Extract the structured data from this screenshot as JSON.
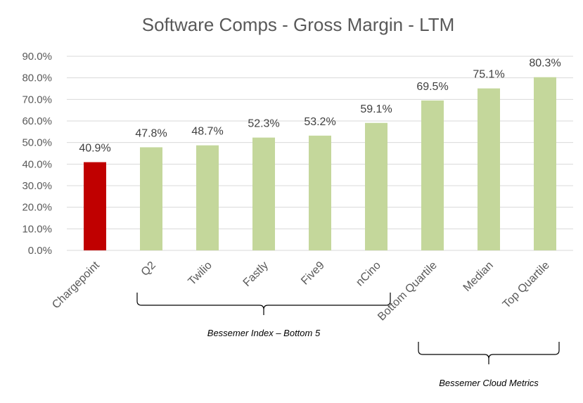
{
  "chart_data": {
    "type": "bar",
    "title": "Software Comps - Gross Margin - LTM",
    "categories": [
      "Chargepoint",
      "Q2",
      "Twilio",
      "Fastly",
      "Five9",
      "nCino",
      "Bottom Quartile",
      "Median",
      "Top Quartile"
    ],
    "values": [
      40.9,
      47.8,
      48.7,
      52.3,
      53.2,
      59.1,
      69.5,
      75.1,
      80.3
    ],
    "data_labels": [
      "40.9%",
      "47.8%",
      "48.7%",
      "52.3%",
      "53.2%",
      "59.1%",
      "69.5%",
      "75.1%",
      "80.3%"
    ],
    "bar_colors": [
      "#c00000",
      "#c4d79b",
      "#c4d79b",
      "#c4d79b",
      "#c4d79b",
      "#c4d79b",
      "#c4d79b",
      "#c4d79b",
      "#c4d79b"
    ],
    "xlabel": "",
    "ylabel": "",
    "ylim": [
      0,
      90
    ],
    "yticks": [
      "0.0%",
      "10.0%",
      "20.0%",
      "30.0%",
      "40.0%",
      "50.0%",
      "60.0%",
      "70.0%",
      "80.0%",
      "90.0%"
    ],
    "grid": true,
    "annotations": [
      {
        "text": "Bessemer Index – Bottom 5",
        "from_category": 1,
        "to_category": 5
      },
      {
        "text": "Bessemer Cloud Metrics",
        "from_category": 6,
        "to_category": 8
      }
    ]
  }
}
